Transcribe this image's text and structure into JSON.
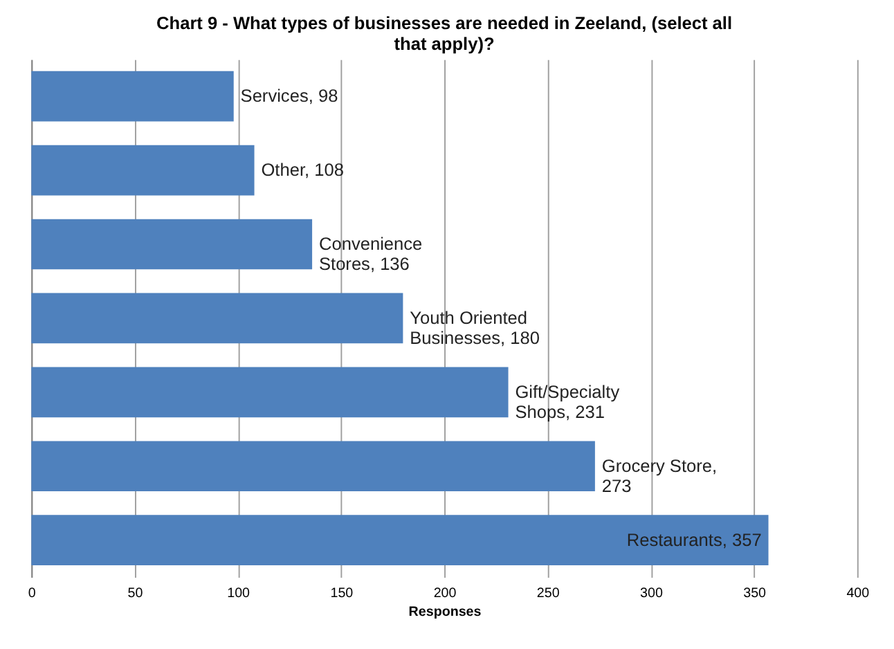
{
  "chart_data": {
    "type": "bar",
    "orientation": "horizontal",
    "title": [
      "Chart 9 - What types of businesses are needed in Zeeland, (select all",
      "that apply)?"
    ],
    "xlabel": "Responses",
    "categories": [
      null,
      null,
      null,
      null,
      null,
      null,
      null
    ],
    "values": [
      98,
      108,
      136,
      180,
      231,
      273,
      357
    ],
    "color": "#4f81bd",
    "value_labels": [
      "Services, 98",
      "Other, 108",
      "Convenience\nStores, 136",
      "Youth Oriented\nBusinesses, 180",
      "Gift/Specialty\nShops, 231",
      "Grocery Store,\n273",
      "Restaurants, 357"
    ],
    "xlim": [
      0,
      400
    ],
    "xticks": [
      0,
      50,
      100,
      150,
      200,
      250,
      300,
      350,
      400
    ],
    "grid": "x",
    "tick_labels": "x"
  }
}
